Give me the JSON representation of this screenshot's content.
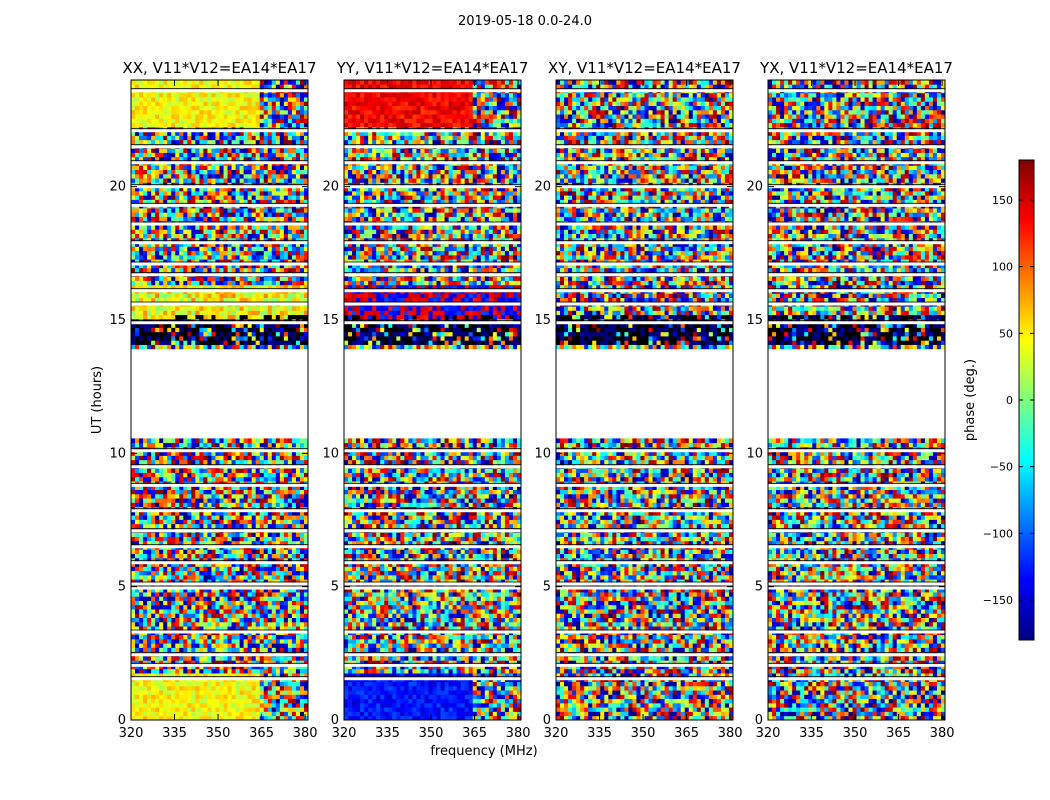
{
  "figure": {
    "suptitle": "2019-05-18 0.0-24.0"
  },
  "chart_data": {
    "type": "heatmap",
    "title": "2019-05-18 0.0-24.0",
    "xlabel": "frequency (MHz)",
    "ylabel": "UT (hours)",
    "xlim": [
      320,
      381
    ],
    "ylim": [
      0,
      24
    ],
    "xticks": [
      320,
      335,
      350,
      365,
      380
    ],
    "yticks": [
      0,
      5,
      10,
      15,
      20
    ],
    "panels": [
      {
        "title": "XX, V11*V12=EA14*EA17",
        "product": "XX"
      },
      {
        "title": "YY, V11*V12=EA14*EA17",
        "product": "YY"
      },
      {
        "title": "XY, V11*V12=EA14*EA17",
        "product": "XY"
      },
      {
        "title": "YX, V11*V12=EA14*EA17",
        "product": "YX"
      }
    ],
    "no_data_ut_range": [
      10.5,
      14.0
    ],
    "colorbar": {
      "label": "phase (deg.)",
      "range": [
        -180,
        180
      ],
      "ticks": [
        -150,
        -100,
        -50,
        0,
        50,
        100,
        150
      ],
      "colormap": "jet"
    }
  },
  "colors": {
    "cmap": [
      "#00007f",
      "#0000ff",
      "#007fff",
      "#00ffff",
      "#7fff7f",
      "#ffff00",
      "#ff7f00",
      "#ff0000",
      "#7f0000"
    ],
    "frame": "#000000",
    "background": "#ffffff"
  }
}
